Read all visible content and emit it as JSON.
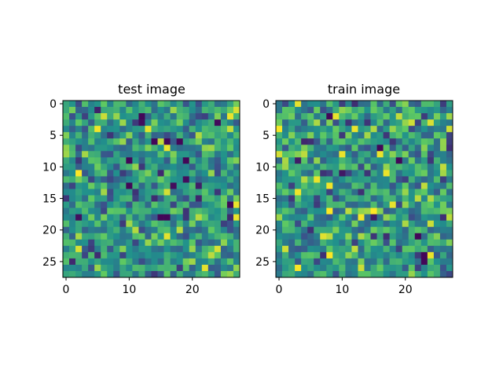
{
  "chart_data": [
    {
      "type": "heatmap",
      "title": "test image",
      "grid": false,
      "colormap": "viridis",
      "shape": [
        28,
        28
      ],
      "xticks": [
        0,
        10,
        20
      ],
      "yticks": [
        0,
        5,
        10,
        15,
        20,
        25
      ],
      "bright_cells": [
        [
          2,
          26
        ],
        [
          7,
          16
        ],
        [
          16,
          27
        ],
        [
          18,
          27
        ]
      ],
      "dark_cells": [
        [
          2,
          12
        ],
        [
          6,
          14
        ],
        [
          6,
          16
        ],
        [
          6,
          18
        ],
        [
          9,
          10
        ],
        [
          9,
          19
        ],
        [
          13,
          10
        ],
        [
          16,
          26
        ],
        [
          18,
          15
        ],
        [
          18,
          16
        ]
      ]
    },
    {
      "type": "heatmap",
      "title": "train image",
      "grid": false,
      "colormap": "viridis",
      "shape": [
        28,
        28
      ],
      "xticks": [
        0,
        10,
        20
      ],
      "yticks": [
        0,
        5,
        10,
        15,
        20,
        25
      ],
      "bright_cells": [
        [
          4,
          12
        ],
        [
          8,
          10
        ],
        [
          8,
          16
        ],
        [
          11,
          17
        ],
        [
          12,
          6
        ],
        [
          24,
          24
        ]
      ],
      "dark_cells": [
        [
          2,
          8
        ],
        [
          7,
          16
        ],
        [
          9,
          19
        ],
        [
          21,
          22
        ],
        [
          24,
          23
        ],
        [
          25,
          23
        ]
      ]
    }
  ]
}
